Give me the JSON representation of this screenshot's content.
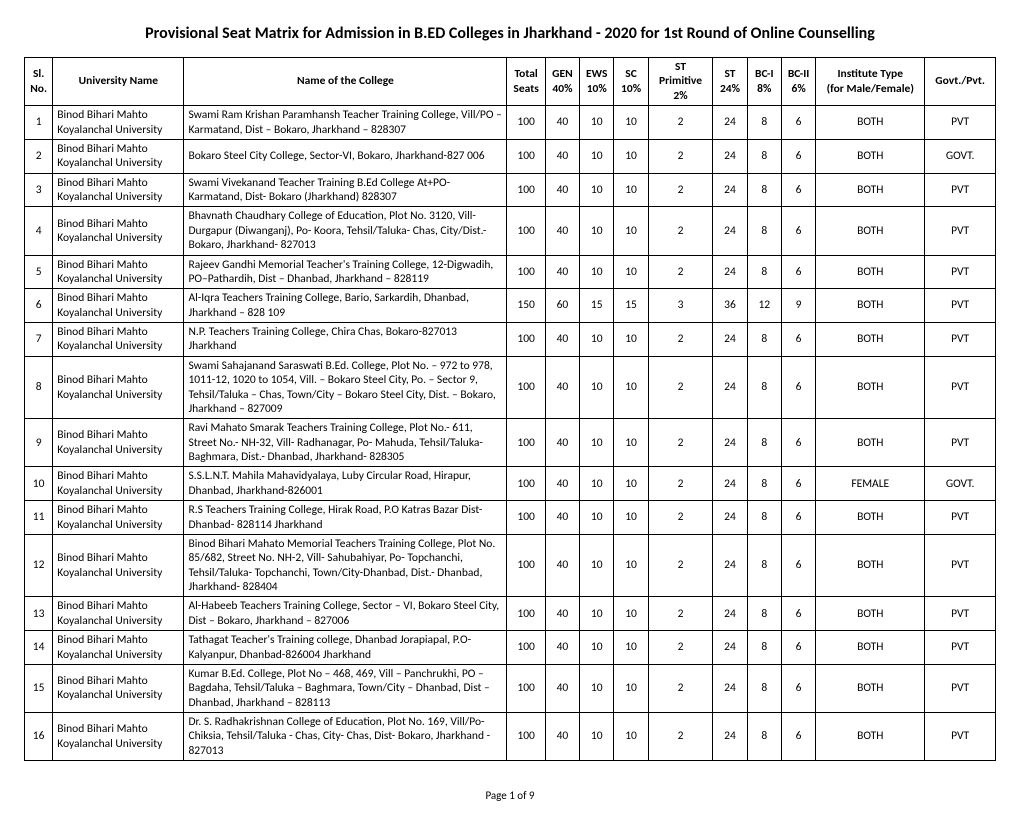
{
  "title": "Provisional Seat Matrix for Admission in B.ED Colleges in Jharkhand - 2020 for 1st Round of Online Counselling",
  "footer": "Page 1 of 9",
  "table": {
    "columns": [
      {
        "key": "sl",
        "h1": "Sl.",
        "h2": "No.",
        "class": "col-sl",
        "align": "center"
      },
      {
        "key": "university",
        "h1": "University Name",
        "h2": "",
        "class": "col-univ",
        "align": "left"
      },
      {
        "key": "college",
        "h1": "Name of the College",
        "h2": "",
        "class": "col-college",
        "align": "left"
      },
      {
        "key": "seats",
        "h1": "Total",
        "h2": "Seats",
        "class": "col-seats",
        "align": "center"
      },
      {
        "key": "gen",
        "h1": "GEN",
        "h2": "40%",
        "class": "col-gen",
        "align": "center"
      },
      {
        "key": "ews",
        "h1": "EWS",
        "h2": "10%",
        "class": "col-ews",
        "align": "center"
      },
      {
        "key": "sc",
        "h1": "SC",
        "h2": "10%",
        "class": "col-sc",
        "align": "center"
      },
      {
        "key": "stp",
        "h1": "ST Primitive",
        "h2": "2%",
        "class": "col-stp",
        "align": "center"
      },
      {
        "key": "st",
        "h1": "ST",
        "h2": "24%",
        "class": "col-st",
        "align": "center"
      },
      {
        "key": "bc1",
        "h1": "BC-I",
        "h2": "8%",
        "class": "col-bc1",
        "align": "center"
      },
      {
        "key": "bc2",
        "h1": "BC-II",
        "h2": "6%",
        "class": "col-bc2",
        "align": "center"
      },
      {
        "key": "inst",
        "h1": "Institute Type",
        "h2": "(for Male/Female)",
        "class": "col-inst",
        "align": "center"
      },
      {
        "key": "gov",
        "h1": "Govt./Pvt.",
        "h2": "",
        "class": "col-gov",
        "align": "center"
      }
    ],
    "rows": [
      {
        "sl": "1",
        "university": "Binod Bihari Mahto Koyalanchal University",
        "college": "Swami Ram Krishan Paramhansh Teacher Training College, Vill/PO – Karmatand, Dist – Bokaro, Jharkhand – 828307",
        "seats": "100",
        "gen": "40",
        "ews": "10",
        "sc": "10",
        "stp": "2",
        "st": "24",
        "bc1": "8",
        "bc2": "6",
        "inst": "BOTH",
        "gov": "PVT"
      },
      {
        "sl": "2",
        "university": "Binod Bihari Mahto Koyalanchal University",
        "college": "Bokaro Steel City College, Sector-VI, Bokaro, Jharkhand-827 006",
        "seats": "100",
        "gen": "40",
        "ews": "10",
        "sc": "10",
        "stp": "2",
        "st": "24",
        "bc1": "8",
        "bc2": "6",
        "inst": "BOTH",
        "gov": "GOVT."
      },
      {
        "sl": "3",
        "university": "Binod Bihari Mahto Koyalanchal University",
        "college": "Swami Vivekanand Teacher Training B.Ed College At+PO- Karmatand, Dist- Bokaro (Jharkhand) 828307",
        "seats": "100",
        "gen": "40",
        "ews": "10",
        "sc": "10",
        "stp": "2",
        "st": "24",
        "bc1": "8",
        "bc2": "6",
        "inst": "BOTH",
        "gov": "PVT"
      },
      {
        "sl": "4",
        "university": "Binod Bihari Mahto Koyalanchal University",
        "college": "Bhavnath Chaudhary College of Education, Plot No. 3120, Vill- Durgapur (Diwanganj), Po- Koora, Tehsil/Taluka- Chas, City/Dist.- Bokaro, Jharkhand- 827013",
        "seats": "100",
        "gen": "40",
        "ews": "10",
        "sc": "10",
        "stp": "2",
        "st": "24",
        "bc1": "8",
        "bc2": "6",
        "inst": "BOTH",
        "gov": "PVT"
      },
      {
        "sl": "5",
        "university": "Binod Bihari Mahto Koyalanchal University",
        "college": "Rajeev Gandhi Memorial Teacher's Training College, 12-Digwadih, PO–Pathardih, Dist – Dhanbad, Jharkhand – 828119",
        "seats": "100",
        "gen": "40",
        "ews": "10",
        "sc": "10",
        "stp": "2",
        "st": "24",
        "bc1": "8",
        "bc2": "6",
        "inst": "BOTH",
        "gov": "PVT"
      },
      {
        "sl": "6",
        "university": "Binod Bihari Mahto Koyalanchal University",
        "college": "Al-Iqra Teachers Training College, Bario, Sarkardih, Dhanbad, Jharkhand – 828 109",
        "seats": "150",
        "gen": "60",
        "ews": "15",
        "sc": "15",
        "stp": "3",
        "st": "36",
        "bc1": "12",
        "bc2": "9",
        "inst": "BOTH",
        "gov": "PVT"
      },
      {
        "sl": "7",
        "university": "Binod Bihari Mahto Koyalanchal University",
        "college": "N.P. Teachers Training College, Chira Chas, Bokaro-827013 Jharkhand",
        "seats": "100",
        "gen": "40",
        "ews": "10",
        "sc": "10",
        "stp": "2",
        "st": "24",
        "bc1": "8",
        "bc2": "6",
        "inst": "BOTH",
        "gov": "PVT"
      },
      {
        "sl": "8",
        "university": "Binod Bihari Mahto Koyalanchal University",
        "college": "Swami Sahajanand Saraswati B.Ed. College, Plot No. – 972 to 978, 1011-12, 1020 to 1054, Vill. – Bokaro Steel City, Po. – Sector 9, Tehsil/Taluka – Chas, Town/City – Bokaro Steel City, Dist. – Bokaro, Jharkhand – 827009",
        "seats": "100",
        "gen": "40",
        "ews": "10",
        "sc": "10",
        "stp": "2",
        "st": "24",
        "bc1": "8",
        "bc2": "6",
        "inst": "BOTH",
        "gov": "PVT"
      },
      {
        "sl": "9",
        "university": "Binod Bihari Mahto Koyalanchal University",
        "college": "Ravi Mahato Smarak Teachers Training College, Plot No.- 611, Street No.- NH-32, Vill- Radhanagar, Po- Mahuda, Tehsil/Taluka- Baghmara, Dist.- Dhanbad, Jharkhand- 828305",
        "seats": "100",
        "gen": "40",
        "ews": "10",
        "sc": "10",
        "stp": "2",
        "st": "24",
        "bc1": "8",
        "bc2": "6",
        "inst": "BOTH",
        "gov": "PVT"
      },
      {
        "sl": "10",
        "university": "Binod Bihari Mahto Koyalanchal University",
        "college": "S.S.L.N.T. Mahila Mahavidyalaya, Luby Circular Road, Hirapur, Dhanbad, Jharkhand-826001",
        "seats": "100",
        "gen": "40",
        "ews": "10",
        "sc": "10",
        "stp": "2",
        "st": "24",
        "bc1": "8",
        "bc2": "6",
        "inst": "FEMALE",
        "gov": "GOVT."
      },
      {
        "sl": "11",
        "university": "Binod Bihari Mahto Koyalanchal University",
        "college": "R.S Teachers Training College, Hirak Road, P.O Katras Bazar Dist-Dhanbad- 828114 Jharkhand",
        "seats": "100",
        "gen": "40",
        "ews": "10",
        "sc": "10",
        "stp": "2",
        "st": "24",
        "bc1": "8",
        "bc2": "6",
        "inst": "BOTH",
        "gov": "PVT"
      },
      {
        "sl": "12",
        "university": "Binod Bihari Mahto Koyalanchal University",
        "college": "Binod Bihari Mahato Memorial Teachers Training College, Plot No. 85/682, Street No. NH-2, Vill- Sahubahiyar, Po- Topchanchi, Tehsil/Taluka- Topchanchi, Town/City-Dhanbad, Dist.- Dhanbad, Jharkhand- 828404",
        "seats": "100",
        "gen": "40",
        "ews": "10",
        "sc": "10",
        "stp": "2",
        "st": "24",
        "bc1": "8",
        "bc2": "6",
        "inst": "BOTH",
        "gov": "PVT"
      },
      {
        "sl": "13",
        "university": "Binod Bihari Mahto Koyalanchal University",
        "college": "Al-Habeeb Teachers Training College, Sector – VI, Bokaro Steel City, Dist – Bokaro, Jharkhand – 827006",
        "seats": "100",
        "gen": "40",
        "ews": "10",
        "sc": "10",
        "stp": "2",
        "st": "24",
        "bc1": "8",
        "bc2": "6",
        "inst": "BOTH",
        "gov": "PVT"
      },
      {
        "sl": "14",
        "university": "Binod Bihari Mahto Koyalanchal University",
        "college": "Tathagat Teacher's Training college, Dhanbad Jorapiapal, P.O-Kalyanpur, Dhanbad-826004 Jharkhand",
        "seats": "100",
        "gen": "40",
        "ews": "10",
        "sc": "10",
        "stp": "2",
        "st": "24",
        "bc1": "8",
        "bc2": "6",
        "inst": "BOTH",
        "gov": "PVT"
      },
      {
        "sl": "15",
        "university": "Binod Bihari Mahto Koyalanchal University",
        "college": "Kumar B.Ed. College, Plot No – 468, 469, Vill – Panchrukhi, PO – Bagdaha, Tehsil/Taluka – Baghmara, Town/City – Dhanbad, Dist – Dhanbad, Jharkhand – 828113",
        "seats": "100",
        "gen": "40",
        "ews": "10",
        "sc": "10",
        "stp": "2",
        "st": "24",
        "bc1": "8",
        "bc2": "6",
        "inst": "BOTH",
        "gov": "PVT"
      },
      {
        "sl": "16",
        "university": "Binod Bihari Mahto Koyalanchal University",
        "college": "Dr. S. Radhakrishnan College of Education, Plot No. 169, Vill/Po- Chiksia, Tehsil/Taluka - Chas, City- Chas, Dist- Bokaro, Jharkhand - 827013",
        "seats": "100",
        "gen": "40",
        "ews": "10",
        "sc": "10",
        "stp": "2",
        "st": "24",
        "bc1": "8",
        "bc2": "6",
        "inst": "BOTH",
        "gov": "PVT"
      }
    ]
  }
}
